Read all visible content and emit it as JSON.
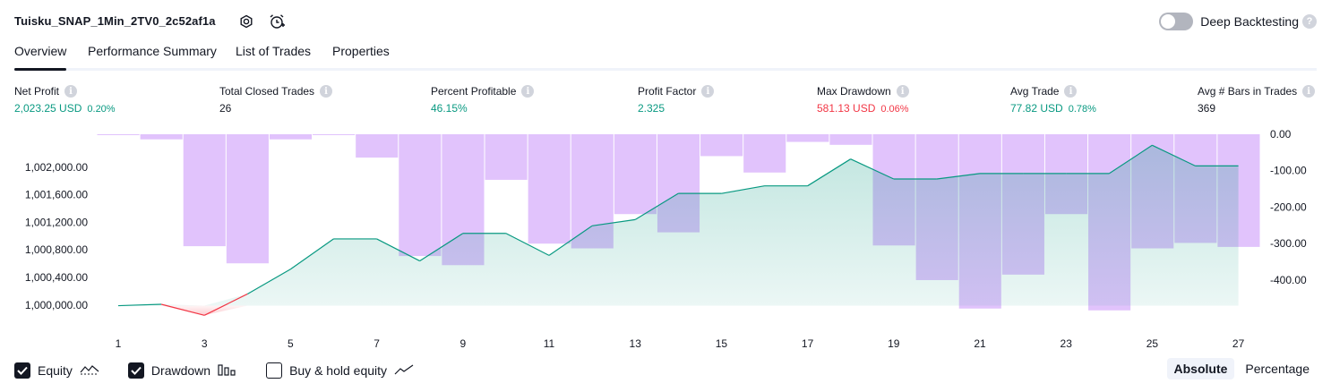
{
  "header": {
    "title": "Tuisku_SNAP_1Min_2TV0_2c52af1a",
    "settings_icon": "gear-icon",
    "alert_icon": "alarm-add-icon",
    "deep_backtesting_label": "Deep Backtesting",
    "deep_backtesting_enabled": false,
    "help_glyph": "?"
  },
  "tabs": [
    {
      "label": "Overview",
      "active": true
    },
    {
      "label": "Performance Summary",
      "active": false
    },
    {
      "label": "List of Trades",
      "active": false
    },
    {
      "label": "Properties",
      "active": false
    }
  ],
  "metrics": [
    {
      "label": "Net Profit",
      "value": "2,023.25 USD",
      "pct": "0.20%",
      "color": "green"
    },
    {
      "label": "Total Closed Trades",
      "value": "26",
      "pct": "",
      "color": "dark"
    },
    {
      "label": "Percent Profitable",
      "value": "46.15%",
      "pct": "",
      "color": "green"
    },
    {
      "label": "Profit Factor",
      "value": "2.325",
      "pct": "",
      "color": "green"
    },
    {
      "label": "Max Drawdown",
      "value": "581.13 USD",
      "pct": "0.06%",
      "color": "red"
    },
    {
      "label": "Avg Trade",
      "value": "77.82 USD",
      "pct": "0.78%",
      "color": "green"
    },
    {
      "label": "Avg # Bars in Trades",
      "value": "369",
      "pct": "",
      "color": "dark"
    }
  ],
  "info_glyph": "i",
  "chart_data": {
    "type": "line+bar",
    "x_ticks": [
      "1",
      "3",
      "5",
      "7",
      "9",
      "11",
      "13",
      "15",
      "17",
      "19",
      "21",
      "23",
      "25",
      "27"
    ],
    "equity": {
      "x": [
        1,
        2,
        3,
        4,
        5,
        6,
        7,
        8,
        9,
        10,
        11,
        12,
        13,
        14,
        15,
        16,
        17,
        18,
        19,
        20,
        21,
        22,
        23,
        24,
        25,
        26,
        27
      ],
      "values": [
        999990,
        1000010,
        999850,
        1000160,
        1000520,
        1000960,
        1000960,
        1000640,
        1001040,
        1001040,
        1000720,
        1001150,
        1001240,
        1001620,
        1001620,
        1001730,
        1001730,
        1002120,
        1001830,
        1001830,
        1001910,
        1001910,
        1001910,
        1001910,
        1002320,
        1002020,
        1002020
      ],
      "ylim": [
        999620,
        1002480
      ],
      "y_ticks": [
        "1,000,000.00",
        "1,000,400.00",
        "1,000,800.00",
        "1,001,200.00",
        "1,001,600.00",
        "1,002,000.00"
      ],
      "y_tick_values": [
        1000000,
        1000400,
        1000800,
        1001200,
        1001600,
        1002000
      ],
      "positive_color": "#089981",
      "negative_color": "#f23645"
    },
    "drawdown": {
      "x": [
        1,
        2,
        3,
        4,
        5,
        6,
        7,
        8,
        9,
        10,
        11,
        12,
        13,
        14,
        15,
        16,
        17,
        18,
        19,
        20,
        21,
        22,
        23,
        24,
        25,
        26,
        27
      ],
      "values": [
        -1,
        -14,
        -307,
        -354,
        -14,
        -2,
        -64,
        -334,
        -359,
        -125,
        -300,
        -313,
        -219,
        -269,
        -60,
        -105,
        -21,
        -29,
        -305,
        -400,
        -478,
        -385,
        -219,
        -483,
        -313,
        -298,
        -309
      ],
      "ylim": [
        -540,
        0
      ],
      "y_ticks": [
        "0.00",
        "-100.00",
        "-200.00",
        "-300.00",
        "-400.00"
      ],
      "y_tick_values": [
        0,
        -100,
        -200,
        -300,
        -400
      ],
      "bar_color": "#d8b2fb"
    }
  },
  "legend": [
    {
      "label": "Equity",
      "checked": true,
      "icon": "equity-line-icon"
    },
    {
      "label": "Drawdown",
      "checked": true,
      "icon": "drawdown-bars-icon"
    },
    {
      "label": "Buy & hold equity",
      "checked": false,
      "icon": "buy-hold-line-icon"
    }
  ],
  "scale_buttons": [
    {
      "label": "Absolute",
      "active": true
    },
    {
      "label": "Percentage",
      "active": false
    }
  ]
}
